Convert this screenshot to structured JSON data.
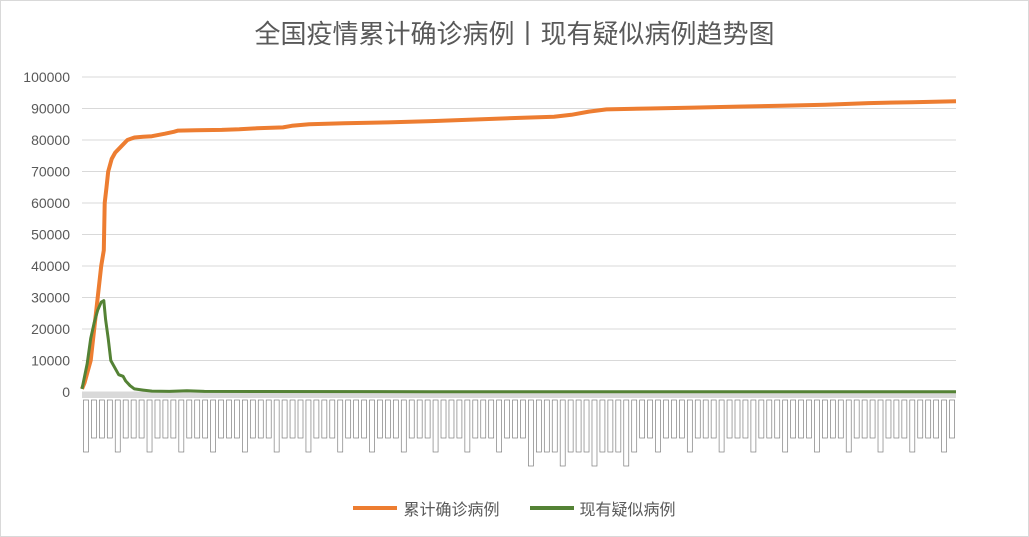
{
  "chart_data": {
    "type": "line",
    "title": "全国疫情累计确诊病例丨现有疑似病例趋势图",
    "xlabel": "",
    "ylabel": "",
    "ylim": [
      0,
      100000
    ],
    "yticks": [
      "0",
      "10000",
      "20000",
      "30000",
      "40000",
      "50000",
      "60000",
      "70000",
      "80000",
      "90000",
      "100000"
    ],
    "grid": true,
    "legend_position": "bottom",
    "n_points": 300,
    "series": [
      {
        "name": "累计确诊病例",
        "color": "#ED7D31",
        "points": [
          [
            0,
            1000
          ],
          [
            3,
            3000
          ],
          [
            6,
            6000
          ],
          [
            10,
            10000
          ],
          [
            14,
            20000
          ],
          [
            18,
            30000
          ],
          [
            22,
            40000
          ],
          [
            25,
            45000
          ],
          [
            26,
            60000
          ],
          [
            28,
            65000
          ],
          [
            30,
            70000
          ],
          [
            34,
            74000
          ],
          [
            38,
            76000
          ],
          [
            45,
            78000
          ],
          [
            52,
            80000
          ],
          [
            60,
            80800
          ],
          [
            70,
            81000
          ],
          [
            80,
            81200
          ],
          [
            95,
            82000
          ],
          [
            105,
            82600
          ],
          [
            110,
            83000
          ],
          [
            130,
            83100
          ],
          [
            160,
            83200
          ],
          [
            180,
            83400
          ],
          [
            200,
            83700
          ],
          [
            230,
            84000
          ],
          [
            240,
            84500
          ],
          [
            260,
            85000
          ],
          [
            300,
            85300
          ],
          [
            350,
            85600
          ],
          [
            400,
            86000
          ],
          [
            450,
            86500
          ],
          [
            500,
            87000
          ],
          [
            540,
            87400
          ],
          [
            560,
            88000
          ],
          [
            580,
            89000
          ],
          [
            600,
            89700
          ],
          [
            650,
            90000
          ],
          [
            700,
            90300
          ],
          [
            750,
            90600
          ],
          [
            800,
            90900
          ],
          [
            850,
            91200
          ],
          [
            900,
            91700
          ],
          [
            950,
            92000
          ],
          [
            1000,
            92300
          ]
        ],
        "x_scale_max": 1000
      },
      {
        "name": "现有疑似病例",
        "color": "#548235",
        "points": [
          [
            0,
            1000
          ],
          [
            3,
            5000
          ],
          [
            6,
            9000
          ],
          [
            10,
            17000
          ],
          [
            14,
            22000
          ],
          [
            18,
            26000
          ],
          [
            22,
            28500
          ],
          [
            25,
            29000
          ],
          [
            27,
            23000
          ],
          [
            30,
            17000
          ],
          [
            33,
            10000
          ],
          [
            37,
            8000
          ],
          [
            42,
            5500
          ],
          [
            47,
            5000
          ],
          [
            50,
            3500
          ],
          [
            55,
            2000
          ],
          [
            60,
            1000
          ],
          [
            70,
            600
          ],
          [
            80,
            300
          ],
          [
            100,
            200
          ],
          [
            120,
            400
          ],
          [
            140,
            200
          ],
          [
            200,
            150
          ],
          [
            400,
            100
          ],
          [
            700,
            80
          ],
          [
            1000,
            100
          ]
        ],
        "x_scale_max": 1000
      }
    ],
    "x_tick_labels_legible": false
  }
}
